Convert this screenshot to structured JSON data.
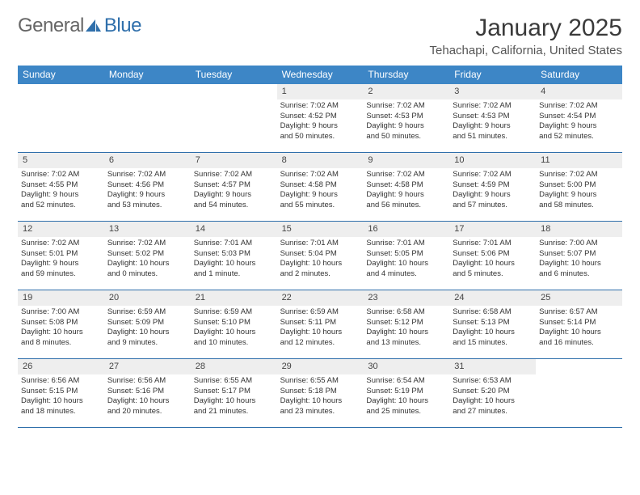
{
  "logo": {
    "text_general": "General",
    "text_blue": "Blue"
  },
  "title": "January 2025",
  "location": "Tehachapi, California, United States",
  "colors": {
    "header_bg": "#3d86c6",
    "header_text": "#ffffff",
    "daynum_bg": "#eeeeee",
    "week_divider": "#2f6fab",
    "body_text": "#333333",
    "logo_blue": "#2f6fab"
  },
  "weekdays": [
    "Sunday",
    "Monday",
    "Tuesday",
    "Wednesday",
    "Thursday",
    "Friday",
    "Saturday"
  ],
  "weeks": [
    [
      null,
      null,
      null,
      {
        "n": "1",
        "sr": "Sunrise: 7:02 AM",
        "ss": "Sunset: 4:52 PM",
        "d1": "Daylight: 9 hours",
        "d2": "and 50 minutes."
      },
      {
        "n": "2",
        "sr": "Sunrise: 7:02 AM",
        "ss": "Sunset: 4:53 PM",
        "d1": "Daylight: 9 hours",
        "d2": "and 50 minutes."
      },
      {
        "n": "3",
        "sr": "Sunrise: 7:02 AM",
        "ss": "Sunset: 4:53 PM",
        "d1": "Daylight: 9 hours",
        "d2": "and 51 minutes."
      },
      {
        "n": "4",
        "sr": "Sunrise: 7:02 AM",
        "ss": "Sunset: 4:54 PM",
        "d1": "Daylight: 9 hours",
        "d2": "and 52 minutes."
      }
    ],
    [
      {
        "n": "5",
        "sr": "Sunrise: 7:02 AM",
        "ss": "Sunset: 4:55 PM",
        "d1": "Daylight: 9 hours",
        "d2": "and 52 minutes."
      },
      {
        "n": "6",
        "sr": "Sunrise: 7:02 AM",
        "ss": "Sunset: 4:56 PM",
        "d1": "Daylight: 9 hours",
        "d2": "and 53 minutes."
      },
      {
        "n": "7",
        "sr": "Sunrise: 7:02 AM",
        "ss": "Sunset: 4:57 PM",
        "d1": "Daylight: 9 hours",
        "d2": "and 54 minutes."
      },
      {
        "n": "8",
        "sr": "Sunrise: 7:02 AM",
        "ss": "Sunset: 4:58 PM",
        "d1": "Daylight: 9 hours",
        "d2": "and 55 minutes."
      },
      {
        "n": "9",
        "sr": "Sunrise: 7:02 AM",
        "ss": "Sunset: 4:58 PM",
        "d1": "Daylight: 9 hours",
        "d2": "and 56 minutes."
      },
      {
        "n": "10",
        "sr": "Sunrise: 7:02 AM",
        "ss": "Sunset: 4:59 PM",
        "d1": "Daylight: 9 hours",
        "d2": "and 57 minutes."
      },
      {
        "n": "11",
        "sr": "Sunrise: 7:02 AM",
        "ss": "Sunset: 5:00 PM",
        "d1": "Daylight: 9 hours",
        "d2": "and 58 minutes."
      }
    ],
    [
      {
        "n": "12",
        "sr": "Sunrise: 7:02 AM",
        "ss": "Sunset: 5:01 PM",
        "d1": "Daylight: 9 hours",
        "d2": "and 59 minutes."
      },
      {
        "n": "13",
        "sr": "Sunrise: 7:02 AM",
        "ss": "Sunset: 5:02 PM",
        "d1": "Daylight: 10 hours",
        "d2": "and 0 minutes."
      },
      {
        "n": "14",
        "sr": "Sunrise: 7:01 AM",
        "ss": "Sunset: 5:03 PM",
        "d1": "Daylight: 10 hours",
        "d2": "and 1 minute."
      },
      {
        "n": "15",
        "sr": "Sunrise: 7:01 AM",
        "ss": "Sunset: 5:04 PM",
        "d1": "Daylight: 10 hours",
        "d2": "and 2 minutes."
      },
      {
        "n": "16",
        "sr": "Sunrise: 7:01 AM",
        "ss": "Sunset: 5:05 PM",
        "d1": "Daylight: 10 hours",
        "d2": "and 4 minutes."
      },
      {
        "n": "17",
        "sr": "Sunrise: 7:01 AM",
        "ss": "Sunset: 5:06 PM",
        "d1": "Daylight: 10 hours",
        "d2": "and 5 minutes."
      },
      {
        "n": "18",
        "sr": "Sunrise: 7:00 AM",
        "ss": "Sunset: 5:07 PM",
        "d1": "Daylight: 10 hours",
        "d2": "and 6 minutes."
      }
    ],
    [
      {
        "n": "19",
        "sr": "Sunrise: 7:00 AM",
        "ss": "Sunset: 5:08 PM",
        "d1": "Daylight: 10 hours",
        "d2": "and 8 minutes."
      },
      {
        "n": "20",
        "sr": "Sunrise: 6:59 AM",
        "ss": "Sunset: 5:09 PM",
        "d1": "Daylight: 10 hours",
        "d2": "and 9 minutes."
      },
      {
        "n": "21",
        "sr": "Sunrise: 6:59 AM",
        "ss": "Sunset: 5:10 PM",
        "d1": "Daylight: 10 hours",
        "d2": "and 10 minutes."
      },
      {
        "n": "22",
        "sr": "Sunrise: 6:59 AM",
        "ss": "Sunset: 5:11 PM",
        "d1": "Daylight: 10 hours",
        "d2": "and 12 minutes."
      },
      {
        "n": "23",
        "sr": "Sunrise: 6:58 AM",
        "ss": "Sunset: 5:12 PM",
        "d1": "Daylight: 10 hours",
        "d2": "and 13 minutes."
      },
      {
        "n": "24",
        "sr": "Sunrise: 6:58 AM",
        "ss": "Sunset: 5:13 PM",
        "d1": "Daylight: 10 hours",
        "d2": "and 15 minutes."
      },
      {
        "n": "25",
        "sr": "Sunrise: 6:57 AM",
        "ss": "Sunset: 5:14 PM",
        "d1": "Daylight: 10 hours",
        "d2": "and 16 minutes."
      }
    ],
    [
      {
        "n": "26",
        "sr": "Sunrise: 6:56 AM",
        "ss": "Sunset: 5:15 PM",
        "d1": "Daylight: 10 hours",
        "d2": "and 18 minutes."
      },
      {
        "n": "27",
        "sr": "Sunrise: 6:56 AM",
        "ss": "Sunset: 5:16 PM",
        "d1": "Daylight: 10 hours",
        "d2": "and 20 minutes."
      },
      {
        "n": "28",
        "sr": "Sunrise: 6:55 AM",
        "ss": "Sunset: 5:17 PM",
        "d1": "Daylight: 10 hours",
        "d2": "and 21 minutes."
      },
      {
        "n": "29",
        "sr": "Sunrise: 6:55 AM",
        "ss": "Sunset: 5:18 PM",
        "d1": "Daylight: 10 hours",
        "d2": "and 23 minutes."
      },
      {
        "n": "30",
        "sr": "Sunrise: 6:54 AM",
        "ss": "Sunset: 5:19 PM",
        "d1": "Daylight: 10 hours",
        "d2": "and 25 minutes."
      },
      {
        "n": "31",
        "sr": "Sunrise: 6:53 AM",
        "ss": "Sunset: 5:20 PM",
        "d1": "Daylight: 10 hours",
        "d2": "and 27 minutes."
      },
      null
    ]
  ]
}
